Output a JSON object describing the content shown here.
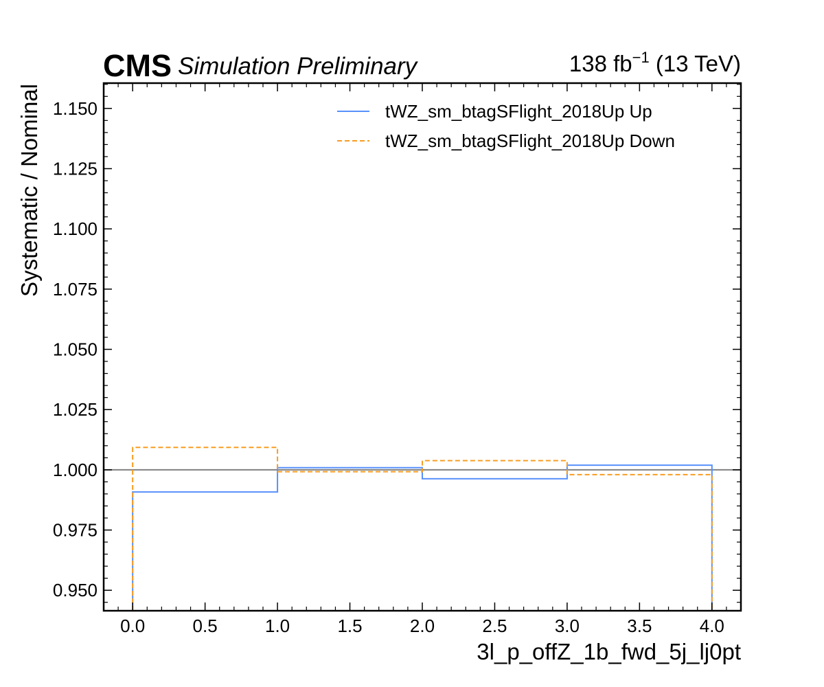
{
  "header": {
    "experiment": "CMS",
    "status": "Simulation Preliminary",
    "lumi_value": "138 fb",
    "lumi_exp": "−1",
    "lumi_energy": " (13 TeV)"
  },
  "chart_data": {
    "type": "line",
    "title": "",
    "xlabel": "3l_p_offZ_1b_fwd_5j_lj0pt",
    "ylabel": "Systematic / Nominal",
    "xlim": [
      -0.2,
      4.2
    ],
    "ylim": [
      0.9415,
      1.1605
    ],
    "xticks": [
      0.0,
      0.5,
      1.0,
      1.5,
      2.0,
      2.5,
      3.0,
      3.5,
      4.0
    ],
    "xtick_labels": [
      "0.0",
      "0.5",
      "1.0",
      "1.5",
      "2.0",
      "2.5",
      "3.0",
      "3.5",
      "4.0"
    ],
    "yticks": [
      0.95,
      0.975,
      1.0,
      1.025,
      1.05,
      1.075,
      1.1,
      1.125,
      1.15
    ],
    "ytick_labels": [
      "0.950",
      "0.975",
      "1.000",
      "1.025",
      "1.050",
      "1.075",
      "1.100",
      "1.125",
      "1.150"
    ],
    "bin_edges": [
      0,
      1,
      2,
      3,
      4
    ],
    "reference_line": 1.0,
    "legend_position": "top-right",
    "grid": false,
    "series": [
      {
        "name": "tWZ_sm_btagSFlight_2018Up Up",
        "style": "solid",
        "color": "#5790fc",
        "values": [
          0.9908,
          1.0009,
          0.9963,
          1.0019
        ]
      },
      {
        "name": "tWZ_sm_btagSFlight_2018Up Down",
        "style": "dashed",
        "color": "#f89c20",
        "values": [
          1.0093,
          0.9992,
          1.0038,
          0.998
        ]
      }
    ]
  }
}
